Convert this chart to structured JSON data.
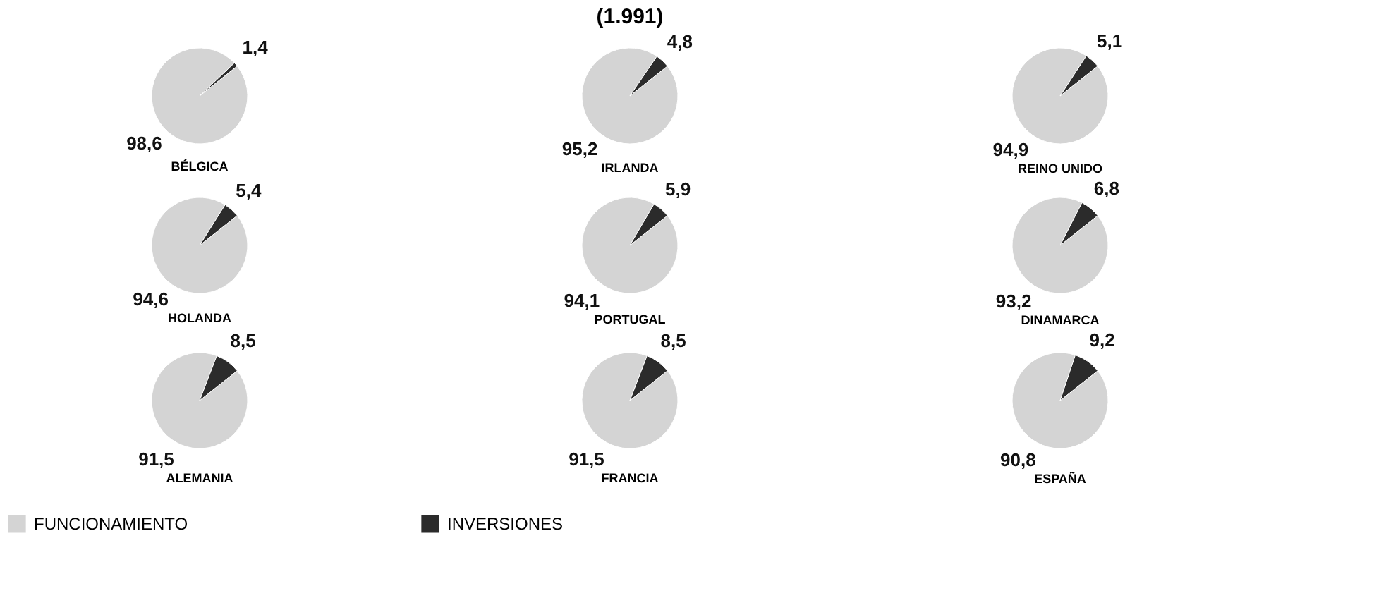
{
  "chart_data": {
    "type": "pie",
    "title": "(1.991)",
    "categories": [
      "FUNCIONAMIENTO",
      "INVERSIONES"
    ],
    "colors": [
      "#d4d4d4",
      "#2b2b2b"
    ],
    "legend": "bottom",
    "series": [
      {
        "name": "BÉLGICA",
        "values": [
          98.6,
          1.4
        ],
        "value_labels": [
          "98,6",
          "1,4"
        ]
      },
      {
        "name": "IRLANDA",
        "values": [
          95.2,
          4.8
        ],
        "value_labels": [
          "95,2",
          "4,8"
        ]
      },
      {
        "name": "REINO UNIDO",
        "values": [
          94.9,
          5.1
        ],
        "value_labels": [
          "94,9",
          "5,1"
        ]
      },
      {
        "name": "HOLANDA",
        "values": [
          94.6,
          5.4
        ],
        "value_labels": [
          "94,6",
          "5,4"
        ]
      },
      {
        "name": "PORTUGAL",
        "values": [
          94.1,
          5.9
        ],
        "value_labels": [
          "94,1",
          "5,9"
        ]
      },
      {
        "name": "DINAMARCA",
        "values": [
          93.2,
          6.8
        ],
        "value_labels": [
          "93,2",
          "6,8"
        ]
      },
      {
        "name": "ALEMANIA",
        "values": [
          91.5,
          8.5
        ],
        "value_labels": [
          "91,5",
          "8,5"
        ]
      },
      {
        "name": "FRANCIA",
        "values": [
          91.5,
          8.5
        ],
        "value_labels": [
          "91,5",
          "8,5"
        ]
      },
      {
        "name": "ESPAÑA",
        "values": [
          90.8,
          9.2
        ],
        "value_labels": [
          "90,8",
          "9,2"
        ]
      }
    ]
  }
}
